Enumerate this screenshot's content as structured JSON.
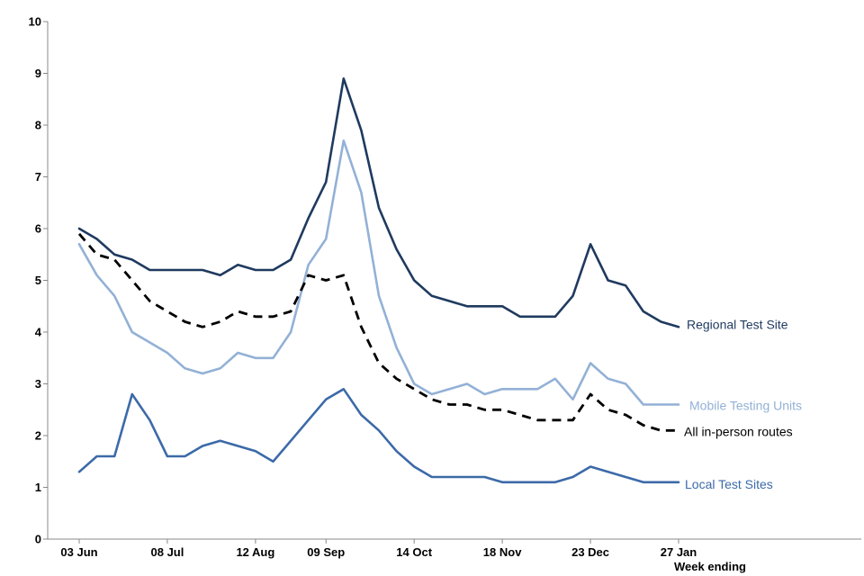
{
  "chart_data": {
    "type": "line",
    "title": "",
    "xlabel": "Week ending",
    "ylabel": "",
    "ylim": [
      0,
      10
    ],
    "yticks": [
      0,
      1,
      2,
      3,
      4,
      5,
      6,
      7,
      8,
      9,
      10
    ],
    "x_tick_labels": [
      "03 Jun",
      "08 Jul",
      "12 Aug",
      "09 Sep",
      "14 Oct",
      "18 Nov",
      "23 Dec",
      "27 Jan"
    ],
    "x_tick_indices": [
      0,
      5,
      10,
      14,
      19,
      24,
      29,
      34
    ],
    "num_weeks": 35,
    "series": [
      {
        "name": "Regional Test Site",
        "color": "#1f3a5f",
        "dashed": false,
        "values": [
          6.0,
          5.8,
          5.5,
          5.4,
          5.2,
          5.2,
          5.2,
          5.2,
          5.1,
          5.3,
          5.2,
          5.2,
          5.4,
          6.2,
          6.9,
          8.9,
          7.9,
          6.4,
          5.6,
          5.0,
          4.7,
          4.6,
          4.5,
          4.5,
          4.5,
          4.3,
          4.3,
          4.3,
          4.7,
          5.7,
          5.0,
          4.9,
          4.4,
          4.2,
          4.1
        ]
      },
      {
        "name": "Mobile Testing Units",
        "color": "#93b1d6",
        "dashed": false,
        "values": [
          5.7,
          5.1,
          4.7,
          4.0,
          3.8,
          3.6,
          3.3,
          3.2,
          3.3,
          3.6,
          3.5,
          3.5,
          4.0,
          5.3,
          5.8,
          7.7,
          6.7,
          4.7,
          3.7,
          3.0,
          2.8,
          2.9,
          3.0,
          2.8,
          2.9,
          2.9,
          2.9,
          3.1,
          2.7,
          3.4,
          3.1,
          3.0,
          2.6,
          2.6,
          2.6
        ]
      },
      {
        "name": "All in-person routes",
        "color": "#000000",
        "dashed": true,
        "values": [
          5.9,
          5.5,
          5.4,
          5.0,
          4.6,
          4.4,
          4.2,
          4.1,
          4.2,
          4.4,
          4.3,
          4.3,
          4.4,
          5.1,
          5.0,
          5.1,
          4.1,
          3.4,
          3.1,
          2.9,
          2.7,
          2.6,
          2.6,
          2.5,
          2.5,
          2.4,
          2.3,
          2.3,
          2.3,
          2.8,
          2.5,
          2.4,
          2.2,
          2.1,
          2.1
        ]
      },
      {
        "name": "Local Test Sites",
        "color": "#3c6aa8",
        "dashed": false,
        "values": [
          1.3,
          1.6,
          1.6,
          2.8,
          2.3,
          1.6,
          1.6,
          1.8,
          1.9,
          1.8,
          1.7,
          1.5,
          1.9,
          2.3,
          2.7,
          2.9,
          2.4,
          2.1,
          1.7,
          1.4,
          1.2,
          1.2,
          1.2,
          1.2,
          1.1,
          1.1,
          1.1,
          1.1,
          1.2,
          1.4,
          1.3,
          1.2,
          1.1,
          1.1,
          1.1
        ]
      }
    ]
  }
}
